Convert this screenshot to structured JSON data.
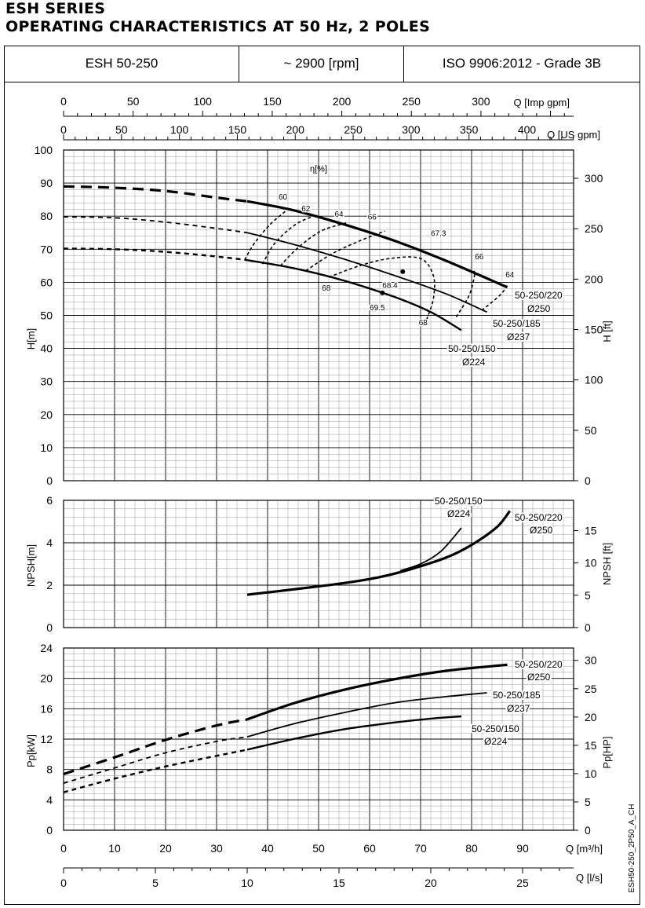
{
  "header": {
    "line1": "ESH SERIES",
    "line2": "OPERATING CHARACTERISTICS AT 50 Hz, 2 POLES"
  },
  "info": {
    "model": "ESH 50-250",
    "speed": "~ 2900 [rpm]",
    "standard": "ISO 9906:2012 - Grade 3B"
  },
  "side_code": "ESH50-250_2P50_A_CH",
  "axes": {
    "q_imp": {
      "label": "Q [Imp gpm]",
      "ticks": [
        0,
        50,
        100,
        150,
        200,
        250,
        300
      ]
    },
    "q_us": {
      "label": "Q [US gpm]",
      "ticks": [
        0,
        50,
        100,
        150,
        200,
        250,
        300,
        350,
        400
      ]
    },
    "q_m3h": {
      "label": "Q [m³/h]",
      "ticks": [
        0,
        10,
        20,
        30,
        40,
        50,
        60,
        70,
        80,
        90
      ]
    },
    "q_ls": {
      "label": "Q [l/s]",
      "ticks": [
        0,
        5,
        10,
        15,
        20,
        25
      ]
    },
    "h_m": {
      "label": "H[m]",
      "ticks": [
        0,
        10,
        20,
        30,
        40,
        50,
        60,
        70,
        80,
        90,
        100
      ]
    },
    "h_ft": {
      "label": "H [ft]",
      "ticks": [
        0,
        50,
        100,
        150,
        200,
        250,
        300
      ]
    },
    "npsh_m": {
      "label": "NPSH[m]",
      "ticks": [
        0,
        2,
        4,
        6
      ]
    },
    "npsh_ft": {
      "label": "NPSH [ft]",
      "ticks": [
        0,
        5,
        10,
        15
      ]
    },
    "p_kw": {
      "label": "Pp[kW]",
      "ticks": [
        0,
        4,
        8,
        12,
        16,
        20,
        24
      ]
    },
    "p_hp": {
      "label": "Pp[HP]",
      "ticks": [
        0,
        5,
        10,
        15,
        20,
        25,
        30
      ]
    }
  },
  "chart_data": [
    {
      "type": "line",
      "name": "head",
      "xunit": "m3/h",
      "xlim": [
        0,
        100
      ],
      "ylim": [
        0,
        100
      ],
      "efficiency_label": "η[%]",
      "series": [
        {
          "name": "50-250/220",
          "name2": "Ø250",
          "dashed": [
            [
              0,
              89
            ],
            [
              10,
              88.6
            ],
            [
              20,
              87.6
            ],
            [
              30,
              85.6
            ],
            [
              36,
              84.5
            ]
          ],
          "solid": [
            [
              36,
              84.5
            ],
            [
              45,
              81.8
            ],
            [
              55,
              77.5
            ],
            [
              65,
              72.5
            ],
            [
              75,
              66.5
            ],
            [
              87,
              58.5
            ]
          ]
        },
        {
          "name": "50-250/185",
          "name2": "Ø237",
          "dashed": [
            [
              0,
              79.8
            ],
            [
              10,
              79.5
            ],
            [
              20,
              78.2
            ],
            [
              30,
              76.3
            ],
            [
              36,
              75
            ]
          ],
          "solid": [
            [
              36,
              75
            ],
            [
              45,
              71.5
            ],
            [
              55,
              67
            ],
            [
              65,
              62
            ],
            [
              75,
              56.5
            ],
            [
              83,
              51
            ]
          ]
        },
        {
          "name": "50-250/150",
          "name2": "Ø224",
          "dashed": [
            [
              0,
              70.2
            ],
            [
              10,
              70
            ],
            [
              20,
              69.2
            ],
            [
              30,
              67.8
            ],
            [
              36,
              66.7
            ]
          ],
          "solid": [
            [
              36,
              66.7
            ],
            [
              45,
              64.3
            ],
            [
              55,
              60.5
            ],
            [
              65,
              55.5
            ],
            [
              72,
              51
            ],
            [
              78,
              45.5
            ]
          ]
        }
      ],
      "efficiency_curves": [
        {
          "label": "60",
          "points": [
            [
              35.5,
              66.8
            ],
            [
              37.5,
              72
            ],
            [
              40.5,
              77.5
            ],
            [
              43.5,
              81.5
            ]
          ]
        },
        {
          "label": "62",
          "points": [
            [
              39,
              65.5
            ],
            [
              41.5,
              72
            ],
            [
              45.5,
              77.5
            ],
            [
              49,
              80
            ]
          ]
        },
        {
          "label": "64",
          "points": [
            [
              42.5,
              65
            ],
            [
              46,
              70.5
            ],
            [
              50.5,
              75.5
            ],
            [
              55.5,
              78
            ]
          ]
        },
        {
          "label": "66",
          "points": [
            [
              47.5,
              63.5
            ],
            [
              52.5,
              68.5
            ],
            [
              58,
              72.5
            ],
            [
              63,
              75.5
            ]
          ]
        },
        {
          "label": "68",
          "points": [
            [
              52,
              61.5
            ],
            [
              58,
              65
            ],
            [
              64,
              67.2
            ],
            [
              70,
              67.2
            ],
            [
              72.5,
              62
            ],
            [
              72.5,
              55
            ],
            [
              71.2,
              48.8
            ]
          ]
        },
        {
          "label": "66",
          "points": [
            [
              77,
              49.5
            ],
            [
              79.5,
              56
            ],
            [
              80.5,
              61.5
            ],
            [
              80.5,
              63.5
            ]
          ]
        },
        {
          "label": "64",
          "points": [
            [
              82,
              51.5
            ],
            [
              85.5,
              56
            ],
            [
              87,
              59
            ]
          ]
        }
      ],
      "efficiency_labels": [
        {
          "text": "60",
          "at": [
            43,
            85
          ]
        },
        {
          "text": "62",
          "at": [
            47.5,
            81.5
          ]
        },
        {
          "text": "64",
          "at": [
            54,
            79.8
          ]
        },
        {
          "text": "66",
          "at": [
            60.5,
            79
          ]
        },
        {
          "text": "67.3",
          "at": [
            73.5,
            74
          ]
        },
        {
          "text": "66",
          "at": [
            81.5,
            67
          ]
        },
        {
          "text": "64",
          "at": [
            87.5,
            61.5
          ]
        },
        {
          "text": "68",
          "at": [
            51.5,
            57.5
          ]
        },
        {
          "text": "68.4",
          "at": [
            64,
            58.3
          ]
        },
        {
          "text": "69.5",
          "at": [
            61.5,
            51.5
          ]
        },
        {
          "text": "68",
          "at": [
            70.5,
            47
          ]
        }
      ],
      "bep_markers": [
        [
          66.5,
          63.2
        ],
        [
          62.5,
          56.8
        ]
      ]
    },
    {
      "type": "line",
      "name": "npsh",
      "xunit": "m3/h",
      "xlim": [
        0,
        100
      ],
      "ylim": [
        0,
        6
      ],
      "series": [
        {
          "name": "50-250/220",
          "name2": "Ø250",
          "points": [
            [
              36,
              1.55
            ],
            [
              45,
              1.8
            ],
            [
              55,
              2.1
            ],
            [
              62,
              2.38
            ],
            [
              68,
              2.75
            ],
            [
              75,
              3.3
            ],
            [
              80,
              3.9
            ],
            [
              85,
              4.75
            ],
            [
              87.5,
              5.5
            ]
          ]
        },
        {
          "name": "50-250/150",
          "name2": "Ø224",
          "points": [
            [
              66,
              2.68
            ],
            [
              70,
              3.0
            ],
            [
              74,
              3.6
            ],
            [
              78,
              4.7
            ]
          ]
        }
      ]
    },
    {
      "type": "line",
      "name": "power",
      "xunit": "m3/h",
      "xlim": [
        0,
        100
      ],
      "ylim": [
        0,
        24
      ],
      "series": [
        {
          "name": "50-250/220",
          "name2": "Ø250",
          "dashed": [
            [
              0,
              7.4
            ],
            [
              10,
              9.6
            ],
            [
              20,
              11.9
            ],
            [
              30,
              13.8
            ],
            [
              36,
              14.6
            ]
          ],
          "solid": [
            [
              36,
              14.6
            ],
            [
              45,
              16.7
            ],
            [
              55,
              18.5
            ],
            [
              65,
              19.9
            ],
            [
              75,
              21
            ],
            [
              87,
              21.8
            ]
          ]
        },
        {
          "name": "50-250/185",
          "name2": "Ø237",
          "dashed": [
            [
              0,
              6.2
            ],
            [
              10,
              8.2
            ],
            [
              20,
              10.2
            ],
            [
              30,
              11.7
            ],
            [
              36,
              12.3
            ]
          ],
          "solid": [
            [
              36,
              12.3
            ],
            [
              45,
              14.0
            ],
            [
              55,
              15.5
            ],
            [
              65,
              16.8
            ],
            [
              75,
              17.6
            ],
            [
              83,
              18.1
            ]
          ]
        },
        {
          "name": "50-250/150",
          "name2": "Ø224",
          "dashed": [
            [
              0,
              5.0
            ],
            [
              10,
              6.8
            ],
            [
              20,
              8.4
            ],
            [
              30,
              9.8
            ],
            [
              36,
              10.6
            ]
          ],
          "solid": [
            [
              36,
              10.6
            ],
            [
              45,
              12.0
            ],
            [
              55,
              13.3
            ],
            [
              65,
              14.2
            ],
            [
              72,
              14.7
            ],
            [
              78,
              15.0
            ]
          ]
        }
      ]
    }
  ]
}
